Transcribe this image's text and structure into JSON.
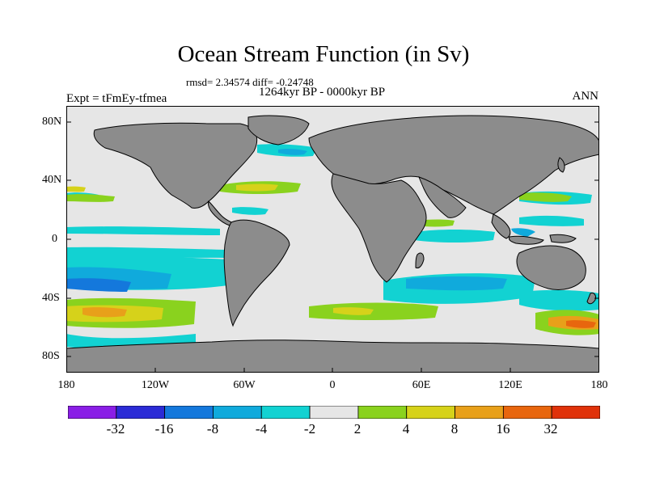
{
  "title": "Ocean Stream Function (in Sv)",
  "stats": "rmsd= 2.34574 diff= -0.24748",
  "period": "1264kyr BP - 0000kyr BP",
  "experiment": "Expt = tFmEy-tfmea",
  "season": "ANN",
  "latitude_labels": [
    "80N",
    "40N",
    "0",
    "40S",
    "80S"
  ],
  "longitude_labels": [
    "180",
    "120W",
    "60W",
    "0",
    "60E",
    "120E",
    "180"
  ],
  "colorbar": {
    "labels": [
      "-32",
      "-16",
      "-8",
      "-4",
      "-2",
      "2",
      "4",
      "8",
      "16",
      "32"
    ],
    "colors": [
      "#8a1ee6",
      "#2b2bd6",
      "#1478dc",
      "#10aadc",
      "#12d2d2",
      "#e6e6e6",
      "#8ad21e",
      "#d6d21a",
      "#e8a01a",
      "#e8660e",
      "#e0320a"
    ]
  },
  "colors": {
    "land": "#8c8c8c",
    "ocean_neutral": "#e6e6e6",
    "coast": "#000000"
  }
}
